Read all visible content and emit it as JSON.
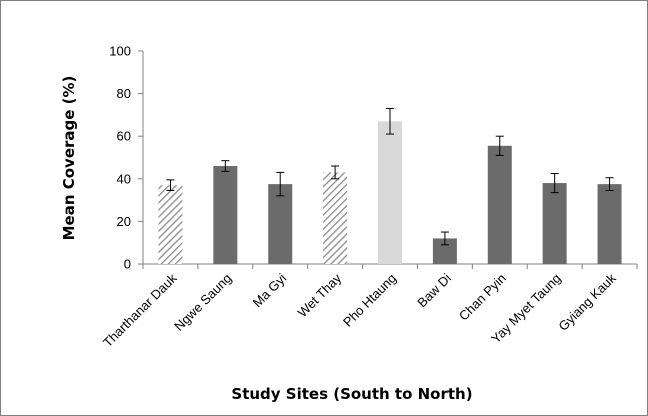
{
  "chart_data": {
    "type": "bar",
    "title": "",
    "xlabel": "Study Sites (South to North)",
    "ylabel": "Mean Coverage (%)",
    "ylim": [
      0,
      100
    ],
    "yticks": [
      0,
      20,
      40,
      60,
      80,
      100
    ],
    "grid": false,
    "categories": [
      "Tharthanar Dauk",
      "Ngwe Saung",
      "Ma Gyi",
      "Wet Thay",
      "Pho Htaung",
      "Baw Di",
      "Chan Pyin",
      "Yay Myet Taung",
      "Gyiang Kauk"
    ],
    "values": [
      37,
      46,
      37.5,
      43,
      67,
      12,
      55.5,
      38,
      37.5
    ],
    "errors": [
      2.5,
      2.5,
      5.5,
      3,
      6,
      3,
      4.5,
      4.5,
      3
    ],
    "bar_styles": [
      "hatched",
      "solid",
      "solid",
      "hatched",
      "light",
      "solid",
      "solid",
      "solid",
      "solid"
    ],
    "colors": {
      "solid": "#6b6b6b",
      "light": "#d9d9d9",
      "hatched": "#8c8c8c",
      "axis": "#808080"
    }
  }
}
